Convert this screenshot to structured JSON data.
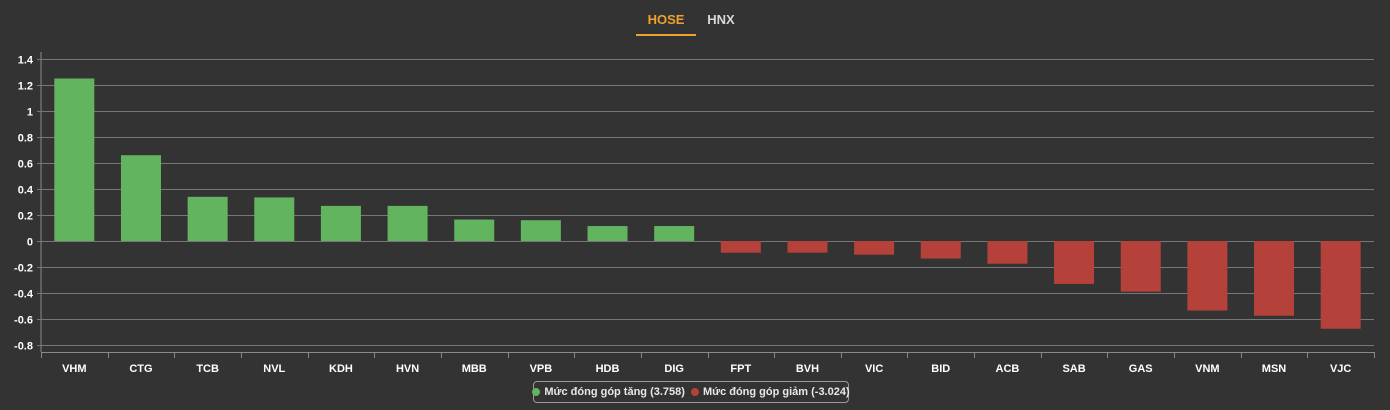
{
  "tabs": [
    {
      "label": "HOSE",
      "active": true
    },
    {
      "label": "HNX",
      "active": false
    }
  ],
  "colors": {
    "positive": "#63b45e",
    "negative": "#b5413b",
    "active_tab": "#f0a030",
    "background": "#333333",
    "grid": "#777777",
    "text": "#ffffff"
  },
  "legend": {
    "positive_label": "Mức đóng góp tăng (3.758)",
    "negative_label": "Mức đóng góp giảm (-3.024)"
  },
  "chart_data": {
    "type": "bar",
    "categories": [
      "VHM",
      "CTG",
      "TCB",
      "NVL",
      "KDH",
      "HVN",
      "MBB",
      "VPB",
      "HDB",
      "DIG",
      "FPT",
      "BVH",
      "VIC",
      "BID",
      "ACB",
      "SAB",
      "GAS",
      "VNM",
      "MSN",
      "VJC"
    ],
    "values": [
      1.25,
      0.66,
      0.34,
      0.335,
      0.27,
      0.27,
      0.165,
      0.16,
      0.115,
      0.115,
      -0.09,
      -0.09,
      -0.105,
      -0.135,
      -0.175,
      -0.33,
      -0.39,
      -0.535,
      -0.575,
      -0.675
    ],
    "yticks": [
      1.4,
      1.2,
      1,
      0.8,
      0.6,
      0.4,
      0.2,
      0,
      -0.2,
      -0.4,
      -0.6,
      -0.8
    ],
    "ylim": [
      -0.8,
      1.4
    ],
    "grid": true,
    "legend_position": "bottom-center"
  }
}
